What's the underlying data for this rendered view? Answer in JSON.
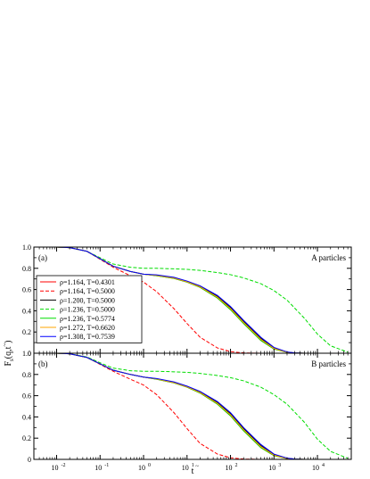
{
  "chart_data": {
    "type": "line",
    "xscale": "log",
    "xlim": [
      0.003,
      60000
    ],
    "ylim": [
      0,
      1
    ],
    "xlabel": "t",
    "xlabel_accent": "~",
    "ylabel": "F",
    "ylabel_sub": "s",
    "ylabel_args": "(q,t",
    "ylabel_args_accent": "~",
    "ylabel_close": ")",
    "x_tick_labels": [
      {
        "value": 0.01,
        "base": "10",
        "exp": "-2"
      },
      {
        "value": 0.1,
        "base": "10",
        "exp": "-1"
      },
      {
        "value": 1,
        "base": "10",
        "exp": "0"
      },
      {
        "value": 10,
        "base": "10",
        "exp": "1"
      },
      {
        "value": 100,
        "base": "10",
        "exp": "2"
      },
      {
        "value": 1000,
        "base": "10",
        "exp": "3"
      },
      {
        "value": 10000,
        "base": "10",
        "exp": "4"
      }
    ],
    "y_tick_labels": [
      {
        "value": 0,
        "label": "0"
      },
      {
        "value": 0.2,
        "label": "0.2"
      },
      {
        "value": 0.4,
        "label": "0.4"
      },
      {
        "value": 0.6,
        "label": "0.6"
      },
      {
        "value": 0.8,
        "label": "0.8"
      },
      {
        "value": 1.0,
        "label": "1.0"
      }
    ],
    "legend_position": "left",
    "series_styles": [
      {
        "name": "ρ=1.164, T=0.4301",
        "color": "#ff0000",
        "dashed": false
      },
      {
        "name": "ρ=1.164, T=0.5000",
        "color": "#ff0000",
        "dashed": true
      },
      {
        "name": "ρ=1.200, T=0.5000",
        "color": "#000000",
        "dashed": false
      },
      {
        "name": "ρ=1.236, T=0.5000",
        "color": "#00dd00",
        "dashed": true
      },
      {
        "name": "ρ=1.236, T=0.5774",
        "color": "#00dd00",
        "dashed": false
      },
      {
        "name": "ρ=1.272, T=0.6620",
        "color": "#ffa500",
        "dashed": false
      },
      {
        "name": "ρ=1.308, T=0.7539",
        "color": "#0000ff",
        "dashed": false
      }
    ],
    "panels": [
      {
        "label": "(a)",
        "title": "A particles",
        "show_legend": true,
        "show_x_tick_labels": false,
        "series": [
          {
            "name": "ρ=1.164, T=0.4301",
            "x": [
              0.01,
              0.02,
              0.05,
              0.1,
              0.2,
              0.5,
              1,
              2,
              5,
              10,
              20,
              50,
              100,
              200,
              500,
              1000,
              2000,
              3000,
              5000
            ],
            "y": [
              1.0,
              0.995,
              0.96,
              0.89,
              0.82,
              0.77,
              0.745,
              0.73,
              0.705,
              0.67,
              0.62,
              0.52,
              0.41,
              0.28,
              0.12,
              0.04,
              0.008,
              0.002,
              0.0
            ]
          },
          {
            "name": "ρ=1.164, T=0.5000",
            "x": [
              0.01,
              0.02,
              0.05,
              0.1,
              0.2,
              0.5,
              1,
              2,
              5,
              10,
              20,
              50,
              100,
              200,
              500
            ],
            "y": [
              1.0,
              0.995,
              0.96,
              0.885,
              0.81,
              0.73,
              0.67,
              0.58,
              0.42,
              0.28,
              0.15,
              0.05,
              0.015,
              0.003,
              0.0
            ]
          },
          {
            "name": "ρ=1.200, T=0.5000",
            "x": [
              0.01,
              0.02,
              0.05,
              0.1,
              0.2,
              0.5,
              1,
              2,
              5,
              10,
              20,
              50,
              100,
              200,
              500,
              1000,
              2000,
              3000,
              5000
            ],
            "y": [
              1.0,
              0.995,
              0.96,
              0.89,
              0.82,
              0.77,
              0.745,
              0.735,
              0.71,
              0.675,
              0.63,
              0.535,
              0.43,
              0.3,
              0.14,
              0.05,
              0.01,
              0.003,
              0.0
            ]
          },
          {
            "name": "ρ=1.236, T=0.5000",
            "x": [
              0.01,
              0.02,
              0.05,
              0.1,
              0.2,
              0.5,
              1,
              2,
              5,
              10,
              20,
              50,
              100,
              200,
              500,
              1000,
              2000,
              5000,
              10000,
              20000,
              50000
            ],
            "y": [
              1.0,
              0.995,
              0.96,
              0.9,
              0.84,
              0.81,
              0.8,
              0.8,
              0.795,
              0.79,
              0.78,
              0.76,
              0.74,
              0.71,
              0.655,
              0.59,
              0.5,
              0.33,
              0.18,
              0.07,
              0.01
            ]
          },
          {
            "name": "ρ=1.236, T=0.5774",
            "x": [
              0.01,
              0.02,
              0.05,
              0.1,
              0.2,
              0.5,
              1,
              2,
              5,
              10,
              20,
              50,
              100,
              200,
              500,
              1000,
              2000,
              3000,
              5000
            ],
            "y": [
              1.0,
              0.995,
              0.96,
              0.89,
              0.82,
              0.77,
              0.745,
              0.73,
              0.705,
              0.67,
              0.62,
              0.52,
              0.41,
              0.28,
              0.12,
              0.04,
              0.008,
              0.002,
              0.0
            ]
          },
          {
            "name": "ρ=1.272, T=0.6620",
            "x": [
              0.01,
              0.02,
              0.05,
              0.1,
              0.2,
              0.5,
              1,
              2,
              5,
              10,
              20,
              50,
              100,
              200,
              500,
              1000,
              2000,
              3000,
              5000
            ],
            "y": [
              1.0,
              0.995,
              0.96,
              0.89,
              0.82,
              0.77,
              0.745,
              0.733,
              0.708,
              0.673,
              0.625,
              0.528,
              0.42,
              0.29,
              0.13,
              0.045,
              0.009,
              0.002,
              0.0
            ]
          },
          {
            "name": "ρ=1.308, T=0.7539",
            "x": [
              0.01,
              0.02,
              0.05,
              0.1,
              0.2,
              0.5,
              1,
              2,
              5,
              10,
              20,
              50,
              100,
              200,
              500,
              1000,
              2000,
              3000,
              5000
            ],
            "y": [
              1.0,
              0.995,
              0.96,
              0.89,
              0.82,
              0.77,
              0.745,
              0.738,
              0.715,
              0.68,
              0.635,
              0.545,
              0.44,
              0.31,
              0.15,
              0.055,
              0.012,
              0.003,
              0.0
            ]
          }
        ]
      },
      {
        "label": "(b)",
        "title": "B particles",
        "show_legend": false,
        "show_x_tick_labels": true,
        "series": [
          {
            "name": "ρ=1.164, T=0.4301",
            "x": [
              0.01,
              0.02,
              0.05,
              0.1,
              0.2,
              0.5,
              1,
              2,
              5,
              10,
              20,
              50,
              100,
              200,
              500,
              1000,
              2000,
              3000,
              5000
            ],
            "y": [
              1.0,
              0.995,
              0.96,
              0.9,
              0.84,
              0.8,
              0.775,
              0.755,
              0.72,
              0.68,
              0.625,
              0.52,
              0.41,
              0.27,
              0.11,
              0.035,
              0.007,
              0.002,
              0.0
            ]
          },
          {
            "name": "ρ=1.164, T=0.5000",
            "x": [
              0.01,
              0.02,
              0.05,
              0.1,
              0.2,
              0.5,
              1,
              2,
              5,
              10,
              20,
              50,
              100,
              200,
              500
            ],
            "y": [
              1.0,
              0.995,
              0.96,
              0.895,
              0.83,
              0.755,
              0.7,
              0.61,
              0.44,
              0.29,
              0.15,
              0.05,
              0.015,
              0.003,
              0.0
            ]
          },
          {
            "name": "ρ=1.200, T=0.5000",
            "x": [
              0.01,
              0.02,
              0.05,
              0.1,
              0.2,
              0.5,
              1,
              2,
              5,
              10,
              20,
              50,
              100,
              200,
              500,
              1000,
              2000,
              3000,
              5000
            ],
            "y": [
              1.0,
              0.995,
              0.96,
              0.9,
              0.84,
              0.8,
              0.775,
              0.76,
              0.725,
              0.685,
              0.635,
              0.535,
              0.43,
              0.29,
              0.13,
              0.045,
              0.01,
              0.003,
              0.0
            ]
          },
          {
            "name": "ρ=1.236, T=0.5000",
            "x": [
              0.01,
              0.02,
              0.05,
              0.1,
              0.2,
              0.5,
              1,
              2,
              5,
              10,
              20,
              50,
              100,
              200,
              500,
              1000,
              2000,
              5000,
              10000,
              20000,
              50000
            ],
            "y": [
              1.0,
              0.995,
              0.965,
              0.91,
              0.86,
              0.835,
              0.83,
              0.83,
              0.825,
              0.82,
              0.81,
              0.79,
              0.77,
              0.74,
              0.68,
              0.61,
              0.52,
              0.35,
              0.19,
              0.075,
              0.01
            ]
          },
          {
            "name": "ρ=1.236, T=0.5774",
            "x": [
              0.01,
              0.02,
              0.05,
              0.1,
              0.2,
              0.5,
              1,
              2,
              5,
              10,
              20,
              50,
              100,
              200,
              500,
              1000,
              2000,
              3000,
              5000
            ],
            "y": [
              1.0,
              0.995,
              0.96,
              0.9,
              0.84,
              0.8,
              0.775,
              0.755,
              0.72,
              0.68,
              0.625,
              0.52,
              0.41,
              0.27,
              0.11,
              0.035,
              0.007,
              0.002,
              0.0
            ]
          },
          {
            "name": "ρ=1.272, T=0.6620",
            "x": [
              0.01,
              0.02,
              0.05,
              0.1,
              0.2,
              0.5,
              1,
              2,
              5,
              10,
              20,
              50,
              100,
              200,
              500,
              1000,
              2000,
              3000,
              5000
            ],
            "y": [
              1.0,
              0.995,
              0.96,
              0.9,
              0.84,
              0.8,
              0.775,
              0.758,
              0.723,
              0.683,
              0.63,
              0.528,
              0.42,
              0.28,
              0.12,
              0.04,
              0.008,
              0.002,
              0.0
            ]
          },
          {
            "name": "ρ=1.308, T=0.7539",
            "x": [
              0.01,
              0.02,
              0.05,
              0.1,
              0.2,
              0.5,
              1,
              2,
              5,
              10,
              20,
              50,
              100,
              200,
              500,
              1000,
              2000,
              3000,
              5000
            ],
            "y": [
              1.0,
              0.995,
              0.96,
              0.9,
              0.84,
              0.8,
              0.775,
              0.762,
              0.73,
              0.69,
              0.64,
              0.545,
              0.44,
              0.3,
              0.14,
              0.05,
              0.012,
              0.003,
              0.0
            ]
          }
        ]
      }
    ]
  }
}
